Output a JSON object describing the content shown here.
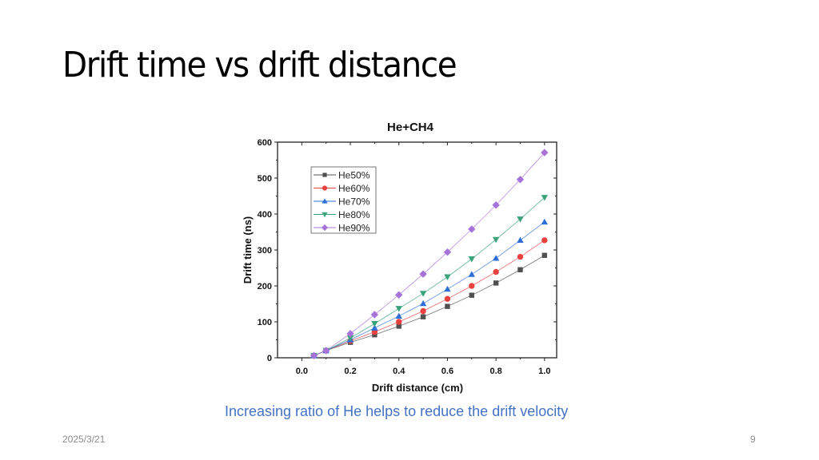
{
  "slide": {
    "title": "Drift time vs drift distance",
    "caption": "Increasing ratio of He helps to reduce the drift velocity",
    "date": "2025/3/21",
    "page_number": "9"
  },
  "chart_data": {
    "type": "line",
    "title": "He+CH4",
    "xlabel": "Drift distance (cm)",
    "ylabel": "Drift time (ns)",
    "xlim": [
      -0.1,
      1.05
    ],
    "ylim": [
      0,
      600
    ],
    "xticks": [
      "0.0",
      "0.2",
      "0.4",
      "0.6",
      "0.8",
      "1.0"
    ],
    "yticks": [
      "0",
      "100",
      "200",
      "300",
      "400",
      "500",
      "600"
    ],
    "grid": false,
    "legend_position": "upper-left",
    "x": [
      0.05,
      0.1,
      0.2,
      0.3,
      0.4,
      0.5,
      0.6,
      0.7,
      0.8,
      0.9,
      1.0
    ],
    "series": [
      {
        "name": "He50%",
        "color": "#505050",
        "marker": "square",
        "values": [
          6,
          20,
          43,
          64,
          88,
          114,
          143,
          174,
          208,
          245,
          285
        ]
      },
      {
        "name": "He60%",
        "color": "#e8413f",
        "marker": "circle",
        "values": [
          6,
          20,
          47,
          72,
          100,
          130,
          164,
          200,
          239,
          281,
          327
        ]
      },
      {
        "name": "He70%",
        "color": "#2d6fd6",
        "marker": "triangle-up",
        "values": [
          6,
          20,
          50,
          83,
          116,
          151,
          191,
          232,
          277,
          327,
          378
        ]
      },
      {
        "name": "He80%",
        "color": "#3aa37a",
        "marker": "triangle-down",
        "values": [
          6,
          20,
          55,
          95,
          137,
          179,
          225,
          275,
          329,
          386,
          446
        ]
      },
      {
        "name": "He90%",
        "color": "#a673d8",
        "marker": "diamond",
        "values": [
          6,
          20,
          67,
          120,
          175,
          233,
          294,
          358,
          425,
          496,
          571
        ]
      }
    ]
  }
}
